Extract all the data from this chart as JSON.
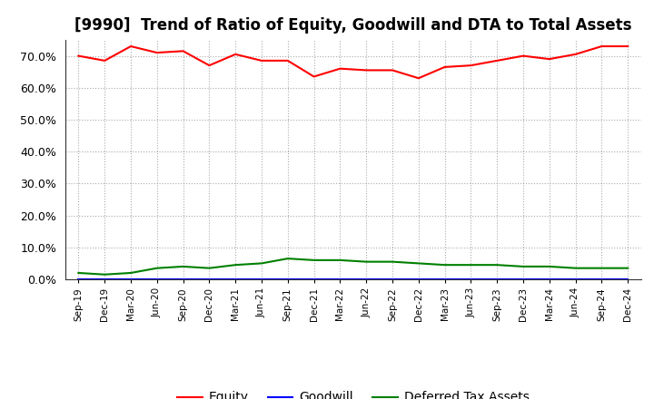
{
  "title": "[9990]  Trend of Ratio of Equity, Goodwill and DTA to Total Assets",
  "labels": [
    "Sep-19",
    "Dec-19",
    "Mar-20",
    "Jun-20",
    "Sep-20",
    "Dec-20",
    "Mar-21",
    "Jun-21",
    "Sep-21",
    "Dec-21",
    "Mar-22",
    "Jun-22",
    "Sep-22",
    "Dec-22",
    "Mar-23",
    "Jun-23",
    "Sep-23",
    "Dec-23",
    "Mar-24",
    "Jun-24",
    "Sep-24",
    "Dec-24"
  ],
  "equity": [
    70.0,
    68.5,
    73.0,
    71.0,
    71.5,
    67.0,
    70.5,
    68.5,
    68.5,
    63.5,
    66.0,
    65.5,
    65.5,
    63.0,
    66.5,
    67.0,
    68.5,
    70.0,
    69.0,
    70.5,
    73.0,
    73.0
  ],
  "goodwill": [
    0.0,
    0.0,
    0.0,
    0.0,
    0.0,
    0.0,
    0.0,
    0.0,
    0.0,
    0.0,
    0.0,
    0.0,
    0.0,
    0.0,
    0.0,
    0.0,
    0.0,
    0.0,
    0.0,
    0.0,
    0.0,
    0.0
  ],
  "dta": [
    2.0,
    1.5,
    2.0,
    3.5,
    4.0,
    3.5,
    4.5,
    5.0,
    6.5,
    6.0,
    6.0,
    5.5,
    5.5,
    5.0,
    4.5,
    4.5,
    4.5,
    4.0,
    4.0,
    3.5,
    3.5,
    3.5
  ],
  "equity_color": "#FF0000",
  "goodwill_color": "#0000FF",
  "dta_color": "#008000",
  "ylim": [
    0,
    75
  ],
  "yticks": [
    0,
    10,
    20,
    30,
    40,
    50,
    60,
    70
  ],
  "ytick_labels": [
    "0.0%",
    "10.0%",
    "20.0%",
    "30.0%",
    "40.0%",
    "50.0%",
    "60.0%",
    "70.0%"
  ],
  "background_color": "#FFFFFF",
  "plot_bg_color": "#FFFFFF",
  "grid_color": "#AAAAAA",
  "legend_items": [
    "Equity",
    "Goodwill",
    "Deferred Tax Assets"
  ],
  "title_fontsize": 12
}
